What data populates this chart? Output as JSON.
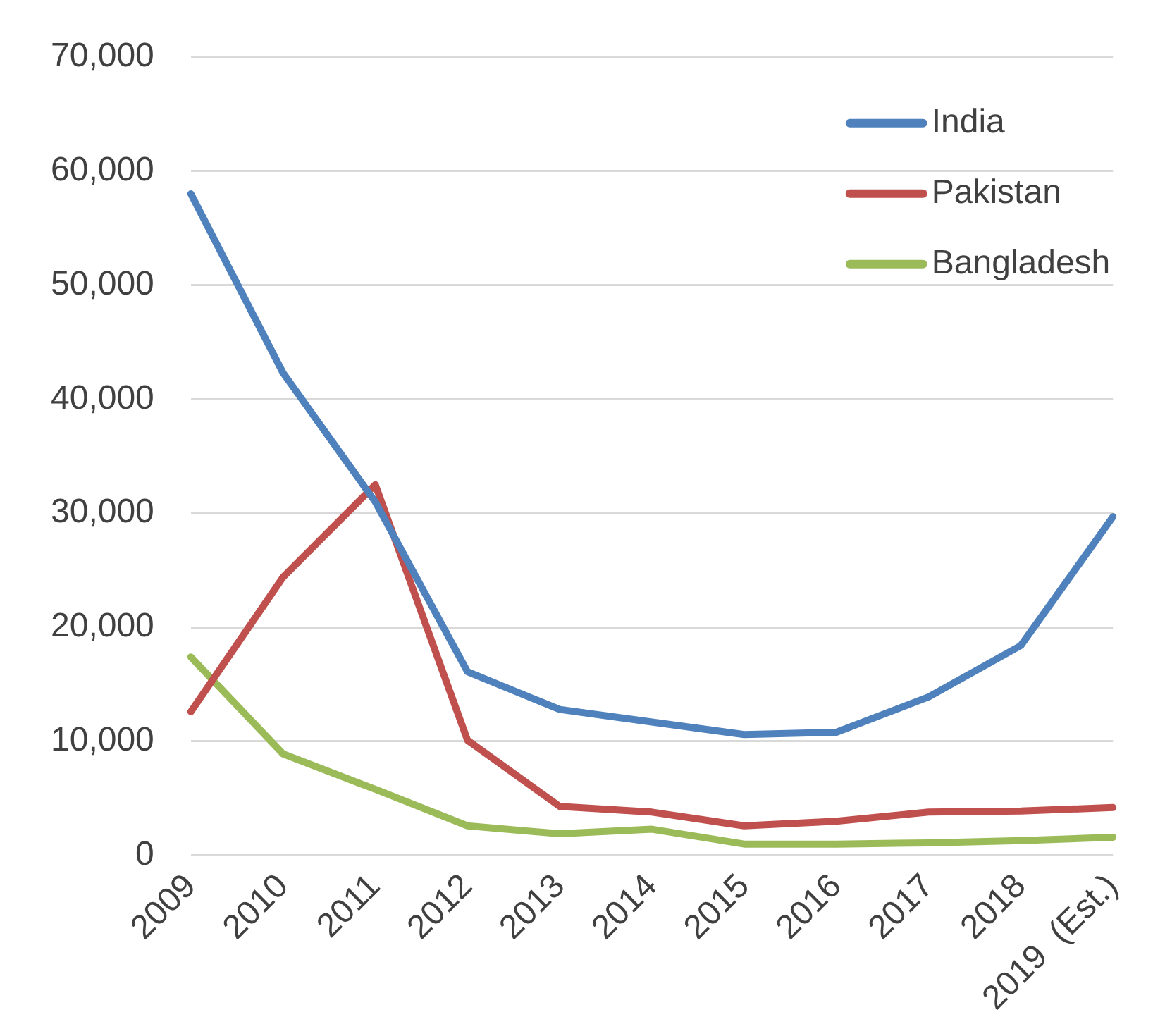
{
  "chart_data": {
    "type": "line",
    "categories": [
      "2009",
      "2010",
      "2011",
      "2012",
      "2013",
      "2014",
      "2015",
      "2016",
      "2017",
      "2018",
      "2019  (Est.)"
    ],
    "series": [
      {
        "name": "India",
        "color": "#4f81bd",
        "values": [
          58000,
          42300,
          31000,
          16100,
          12800,
          11700,
          10600,
          10800,
          13900,
          18400,
          29700
        ]
      },
      {
        "name": "Pakistan",
        "color": "#c0504d",
        "values": [
          12600,
          24400,
          32500,
          10100,
          4300,
          3800,
          2600,
          3000,
          3800,
          3900,
          4200
        ]
      },
      {
        "name": "Bangladesh",
        "color": "#9bbb59",
        "values": [
          17400,
          8900,
          5800,
          2600,
          1900,
          2300,
          1000,
          1000,
          1100,
          1300,
          1600
        ]
      }
    ],
    "ylim": [
      0,
      70000
    ],
    "yticks": [
      0,
      {
        "value": 10000,
        "label": "10,000"
      },
      {
        "value": 20000,
        "label": "20,000"
      },
      {
        "value": 30000,
        "label": "30,000"
      },
      {
        "value": 40000,
        "label": "40,000"
      },
      {
        "value": 50000,
        "label": "50,000"
      },
      {
        "value": 60000,
        "label": "60,000"
      },
      {
        "value": 70000,
        "label": "70,000"
      }
    ],
    "grid": "y",
    "legend": "top right",
    "marker": "none",
    "line_style": "solid"
  }
}
